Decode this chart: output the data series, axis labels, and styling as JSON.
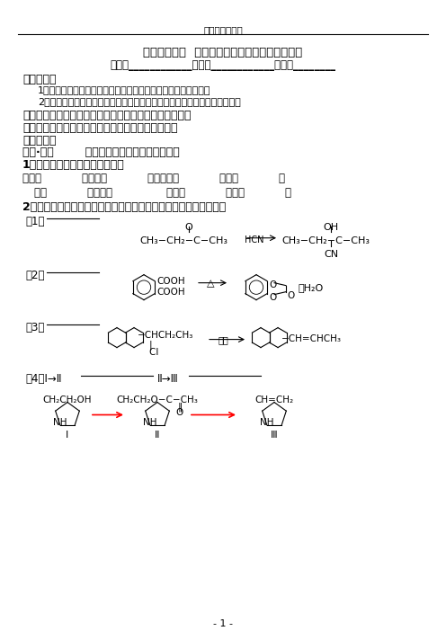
{
  "title_school": "广州市岭南中学",
  "title_main": "选修５第三章  第四节《有机合成》（第１课时）",
  "title_sub": "班级：____________姓名：____________学号：________",
  "background": "#ffffff",
  "text_color": "#000000",
  "page_num": "- 1 -"
}
